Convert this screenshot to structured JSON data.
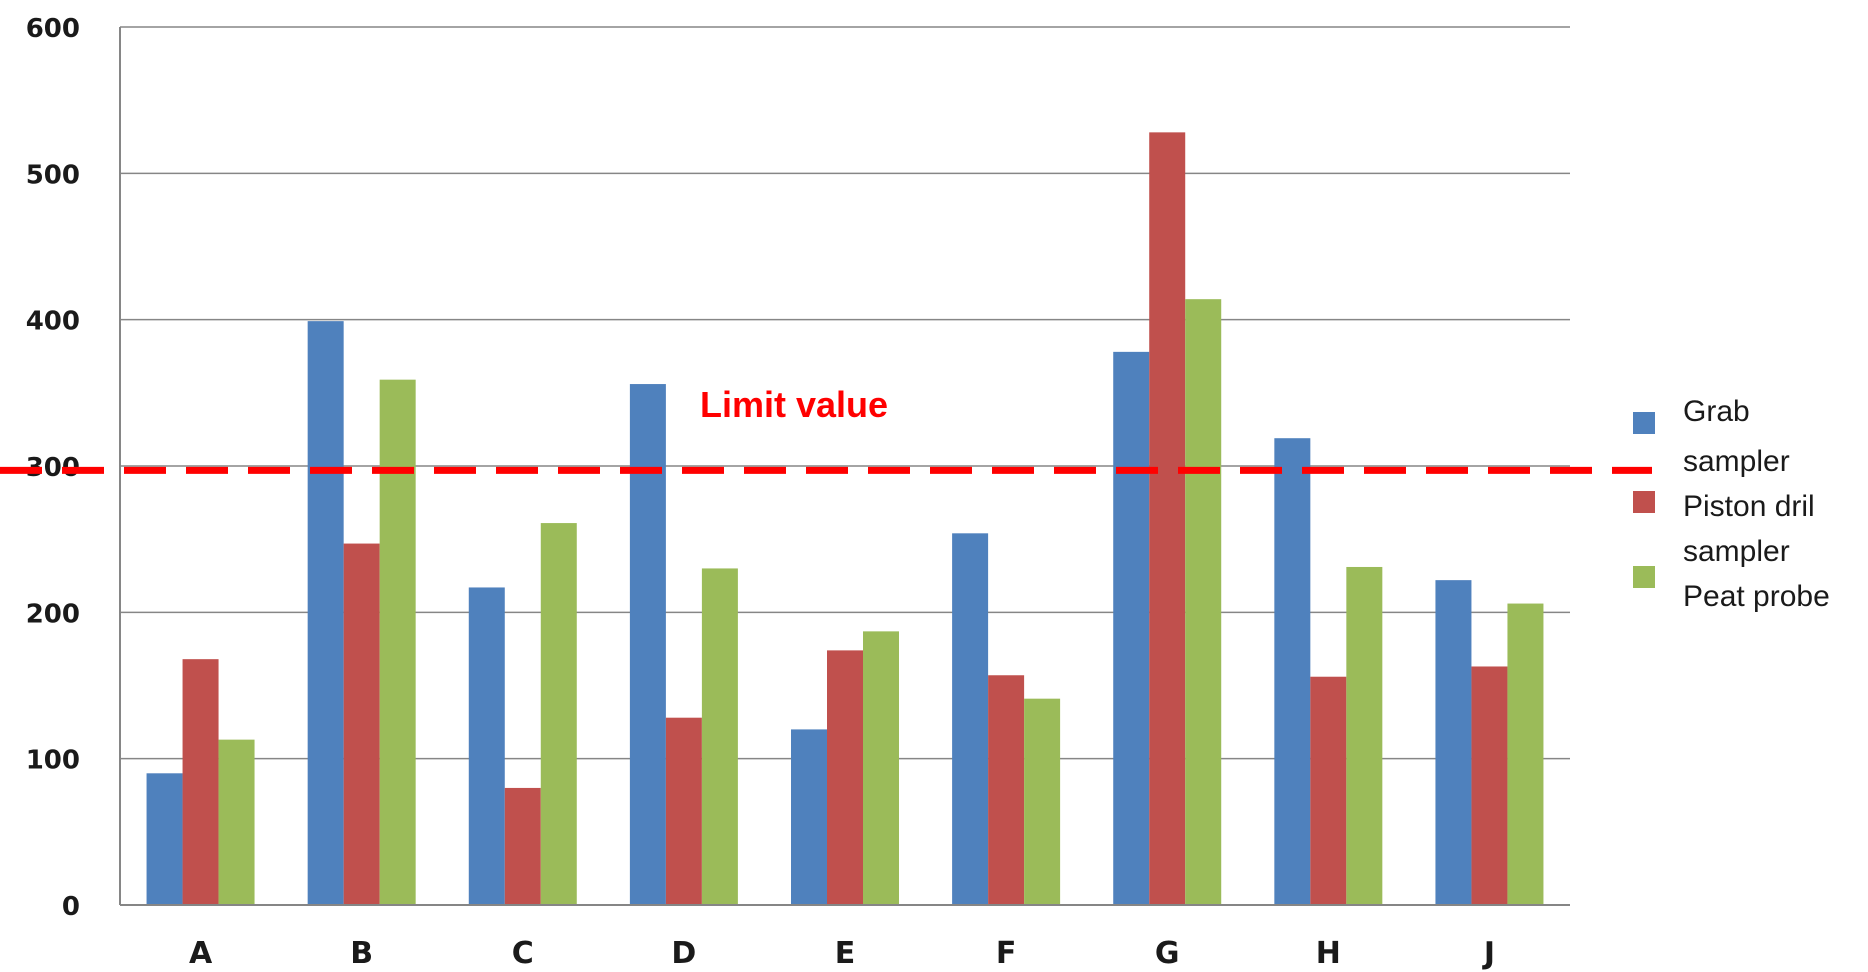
{
  "chart_data": {
    "type": "bar",
    "categories": [
      "A",
      "B",
      "C",
      "D",
      "E",
      "F",
      "G",
      "H",
      "J"
    ],
    "series": [
      {
        "name": "Grab sampler",
        "color": "#4f81bd",
        "values": [
          90,
          399,
          217,
          356,
          120,
          254,
          378,
          319,
          222
        ]
      },
      {
        "name": "Piston dril sampler",
        "color": "#c0504d",
        "values": [
          168,
          247,
          80,
          128,
          174,
          157,
          528,
          156,
          163
        ]
      },
      {
        "name": "Peat probe",
        "color": "#9bbb59",
        "values": [
          113,
          359,
          261,
          230,
          187,
          141,
          414,
          231,
          206
        ]
      }
    ],
    "ylim": [
      0,
      600
    ],
    "yticks": [
      "0",
      "100",
      "200",
      "300",
      "400",
      "500",
      "600"
    ],
    "ytick_values": [
      0,
      100,
      200,
      300,
      400,
      500,
      600
    ],
    "grid": true,
    "legend": {
      "placement": "right",
      "lines": [
        "Grab",
        "sampler",
        "Piston dril",
        "sampler",
        "Peat probe"
      ]
    },
    "limit_line": {
      "value": 297,
      "label": "Limit value",
      "color": "#ff0000",
      "style": "dashed"
    }
  }
}
